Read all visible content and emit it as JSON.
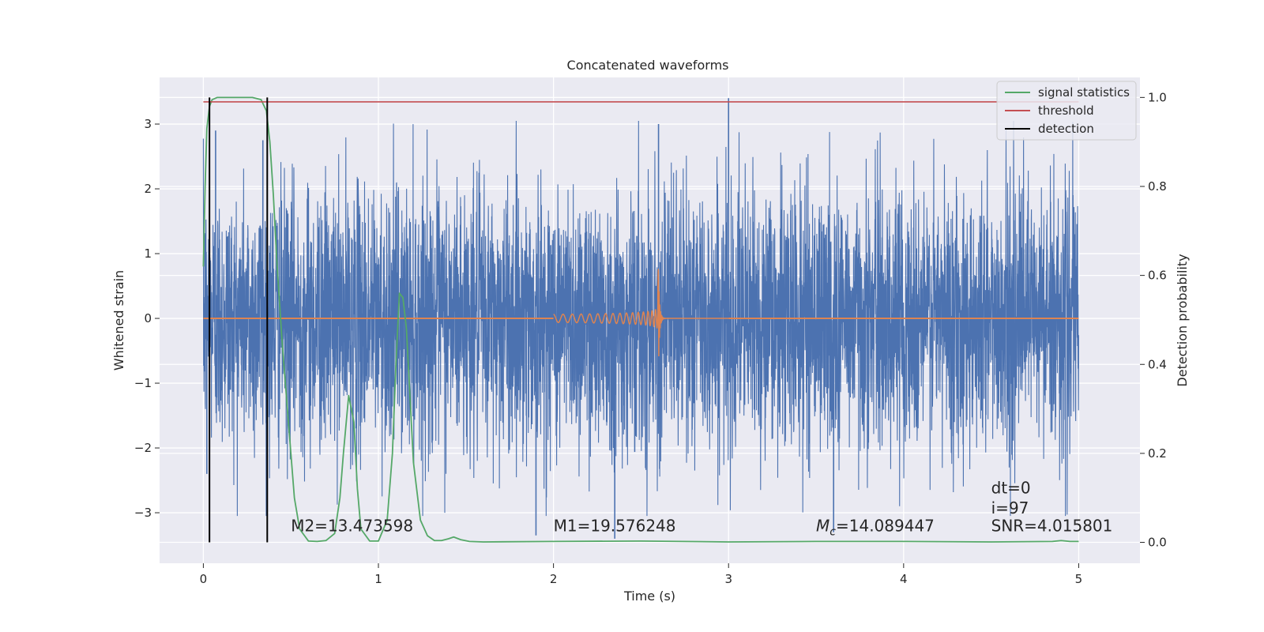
{
  "chart_data": {
    "type": "line",
    "title": "Concatenated waveforms",
    "xlabel": "Time (s)",
    "ylabel": "Whitened strain",
    "y2label": "Detection probability",
    "xlim": [
      -0.25,
      5.35
    ],
    "ylim": [
      -3.78,
      3.72
    ],
    "y2lim": [
      -0.047,
      1.045
    ],
    "xticks": [
      0,
      1,
      2,
      3,
      4,
      5
    ],
    "yticks": [
      -3,
      -2,
      -1,
      0,
      1,
      2,
      3
    ],
    "y2ticks": [
      0.0,
      0.2,
      0.4,
      0.6,
      0.8,
      1.0
    ],
    "grid": true,
    "legend_position": "upper right",
    "colors": {
      "plot_background": "#eaeaf2",
      "strain": "#4c72b0",
      "template": "#dd8452",
      "signal_statistics": "#55a868",
      "threshold": "#c44e52",
      "detection": "#000000"
    },
    "legend": [
      {
        "label": "signal statistics",
        "color": "#55a868"
      },
      {
        "label": "threshold",
        "color": "#c44e52"
      },
      {
        "label": "detection",
        "color": "#000000"
      }
    ],
    "series": [
      {
        "name": "",
        "axis": "left",
        "color": "#4c72b0",
        "description_kind": "noise",
        "x_range": [
          0,
          5
        ],
        "typical_amplitude": 1.0,
        "extreme_peaks": [
          {
            "x": 3.0,
            "y": 3.4
          },
          {
            "x": 2.6,
            "y": 3.0
          },
          {
            "x": 0.07,
            "y": 2.9
          },
          {
            "x": 0.34,
            "y": 2.75
          },
          {
            "x": 1.9,
            "y": -3.35
          },
          {
            "x": 2.35,
            "y": -3.4
          },
          {
            "x": 3.6,
            "y": -3.3
          },
          {
            "x": 0.02,
            "y": -2.4
          }
        ]
      },
      {
        "name": "",
        "axis": "left",
        "color": "#dd8452",
        "description_kind": "chirp",
        "start_x": 2.0,
        "merger_x": 2.6,
        "peak_amplitude": 0.75,
        "ringdown_end_x": 3.0
      },
      {
        "name": "signal statistics",
        "axis": "right",
        "color": "#55a868",
        "x": [
          0,
          0.01,
          0.02,
          0.035,
          0.05,
          0.08,
          0.12,
          0.2,
          0.28,
          0.33,
          0.36,
          0.38,
          0.4,
          0.42,
          0.45,
          0.48,
          0.5,
          0.52,
          0.55,
          0.6,
          0.65,
          0.7,
          0.75,
          0.78,
          0.8,
          0.83,
          0.86,
          0.88,
          0.9,
          0.95,
          1.0,
          1.05,
          1.08,
          1.1,
          1.12,
          1.14,
          1.16,
          1.18,
          1.2,
          1.24,
          1.28,
          1.32,
          1.36,
          1.4,
          1.43,
          1.47,
          1.52,
          1.6,
          2.0,
          2.5,
          3.0,
          3.5,
          4.0,
          4.5,
          4.85,
          4.9,
          4.95,
          5.0
        ],
        "y": [
          0.62,
          0.8,
          0.93,
          0.98,
          0.995,
          1.0,
          1.0,
          1.0,
          1.0,
          0.995,
          0.97,
          0.9,
          0.78,
          0.63,
          0.45,
          0.3,
          0.2,
          0.1,
          0.03,
          0.003,
          0.002,
          0.004,
          0.02,
          0.1,
          0.2,
          0.33,
          0.27,
          0.12,
          0.03,
          0.003,
          0.003,
          0.05,
          0.2,
          0.4,
          0.56,
          0.55,
          0.48,
          0.33,
          0.18,
          0.05,
          0.015,
          0.004,
          0.004,
          0.008,
          0.012,
          0.006,
          0.002,
          0.001,
          0.002,
          0.003,
          0.001,
          0.002,
          0.002,
          0.001,
          0.002,
          0.004,
          0.002,
          0.002
        ]
      },
      {
        "name": "threshold",
        "axis": "right",
        "color": "#c44e52",
        "x": [
          0,
          5
        ],
        "y": [
          0.99,
          0.99
        ]
      },
      {
        "name": "detection",
        "axis": "right",
        "color": "#000000",
        "vertical_lines_x": [
          0.035,
          0.365
        ],
        "y_range": [
          0.0,
          1.0
        ]
      }
    ],
    "annotations": [
      {
        "id": "m2",
        "text": "M2=13.473598",
        "x": 0.5,
        "y2": 0.025
      },
      {
        "id": "m1",
        "text": "M1=19.576248",
        "x": 2.0,
        "y2": 0.025
      },
      {
        "id": "mc",
        "text_main": "M",
        "text_sub": "c",
        "text_rest": "=14.089447",
        "x": 3.5,
        "y2": 0.025
      },
      {
        "id": "dt",
        "text": "dt=0",
        "x": 4.5,
        "y2": 0.11
      },
      {
        "id": "i",
        "text": "i=97",
        "x": 4.5,
        "y2": 0.065
      },
      {
        "id": "snr",
        "text": "SNR=4.015801",
        "x": 4.5,
        "y2": 0.025
      }
    ]
  }
}
